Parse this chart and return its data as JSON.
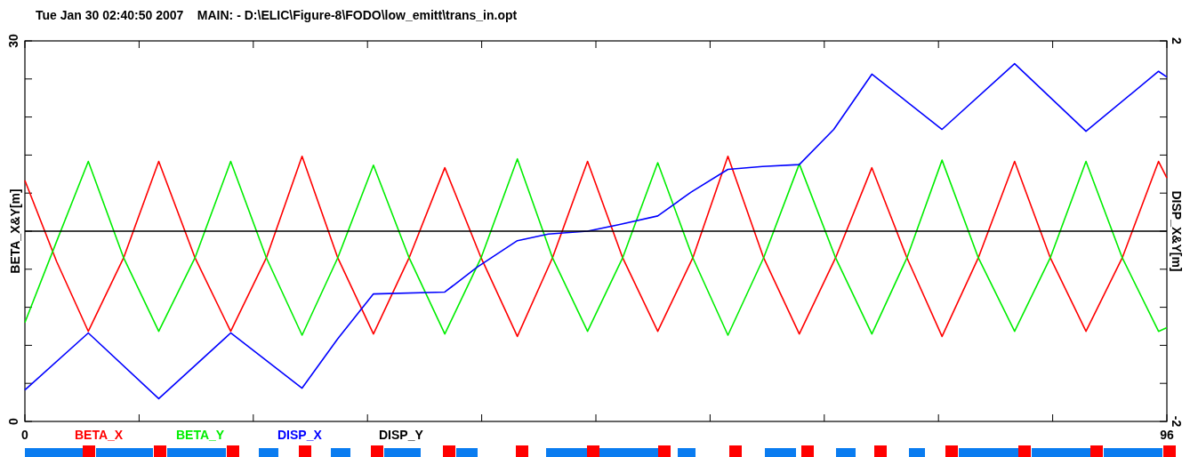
{
  "chart_data": {
    "type": "line",
    "title": "Tue Jan 30 02:40:50 2007    MAIN: - D:\\ELIC\\Figure-8\\FODO\\low_emitt\\trans_in.opt",
    "ylabel": "BETA_X&Y[m]",
    "y2label": "DISP_X&Y[m]",
    "xlim": [
      0,
      96
    ],
    "xticks": [
      0,
      {
        "value": 9.6,
        "label": null
      },
      {
        "value": 19.2,
        "label": null
      },
      {
        "value": 28.8,
        "label": null
      },
      {
        "value": 38.4,
        "label": null
      },
      {
        "value": 48,
        "label": null
      },
      {
        "value": 57.6,
        "label": null
      },
      {
        "value": 67.2,
        "label": null
      },
      {
        "value": 76.8,
        "label": null
      },
      {
        "value": 86.4,
        "label": null
      },
      96
    ],
    "ylim": [
      0,
      30
    ],
    "yticks": [
      0,
      {
        "value": 3,
        "label": null
      },
      {
        "value": 6,
        "label": null
      },
      {
        "value": 9,
        "label": null
      },
      {
        "value": 12,
        "label": null
      },
      {
        "value": 15,
        "label": null
      },
      {
        "value": 18,
        "label": null
      },
      {
        "value": 21,
        "label": null
      },
      {
        "value": 24,
        "label": null
      },
      {
        "value": 27,
        "label": null
      },
      30
    ],
    "y2lim": [
      -2,
      2
    ],
    "y2ticks": [
      -2,
      {
        "value": -1.6,
        "label": null
      },
      {
        "value": -1.2,
        "label": null
      },
      {
        "value": -0.8,
        "label": null
      },
      {
        "value": -0.4,
        "label": null
      },
      {
        "value": 0,
        "label": null
      },
      {
        "value": 0.4,
        "label": null
      },
      {
        "value": 0.8,
        "label": null
      },
      {
        "value": 1.2,
        "label": null
      },
      {
        "value": 1.6,
        "label": null
      },
      2
    ],
    "grid": false,
    "legend": "bottom",
    "marker": "none",
    "line_style": "solid",
    "series": [
      {
        "name": "BETA_X",
        "color": "#ff0000",
        "x": [
          0,
          2.67,
          5.33,
          8.3,
          11.25,
          14.3,
          17.3,
          20.3,
          23.3,
          26.3,
          29.3,
          32.3,
          35.3,
          38.35,
          41.4,
          44.35,
          47.3,
          50.25,
          53.2,
          56.15,
          59.1,
          62.1,
          65.1,
          68.15,
          71.2,
          74.15,
          77.1,
          80.15,
          83.2,
          86.2,
          89.2,
          92.25,
          95.3,
          96
        ],
        "values": [
          19.0,
          12.6,
          7.1,
          12.9,
          20.5,
          12.9,
          7.1,
          12.9,
          20.9,
          12.9,
          6.9,
          12.9,
          20.0,
          12.9,
          6.7,
          12.9,
          20.5,
          12.9,
          7.1,
          12.9,
          20.9,
          12.9,
          6.9,
          12.9,
          20.0,
          12.9,
          6.7,
          12.9,
          20.5,
          12.9,
          7.1,
          12.9,
          20.5,
          19.2
        ]
      },
      {
        "name": "BETA_Y",
        "color": "#00ee00",
        "x": [
          0,
          2.67,
          5.33,
          8.3,
          11.25,
          14.3,
          17.3,
          20.3,
          23.3,
          26.3,
          29.3,
          32.3,
          35.3,
          38.35,
          41.4,
          44.35,
          47.3,
          50.25,
          53.2,
          56.15,
          59.1,
          62.1,
          65.1,
          68.15,
          71.2,
          74.15,
          77.1,
          80.15,
          83.2,
          86.2,
          89.2,
          92.25,
          95.3,
          96
        ],
        "values": [
          7.8,
          14.2,
          20.5,
          12.9,
          7.1,
          12.9,
          20.5,
          12.9,
          6.8,
          12.9,
          20.2,
          12.9,
          6.9,
          12.9,
          20.7,
          12.9,
          7.1,
          12.9,
          20.4,
          12.9,
          6.8,
          12.9,
          20.3,
          12.9,
          6.9,
          12.9,
          20.6,
          12.9,
          7.1,
          12.9,
          20.5,
          12.9,
          7.1,
          7.4
        ]
      },
      {
        "name": "DISP_X",
        "color": "#0000ff",
        "axis": "y2",
        "x": [
          0,
          5.33,
          11.25,
          17.3,
          23.3,
          26.3,
          29.3,
          35.3,
          38,
          41.4,
          44,
          47.3,
          50,
          53.2,
          56,
          59.1,
          62,
          65.1,
          68,
          71.2,
          77.1,
          83.2,
          89.2,
          95.3,
          96
        ],
        "values": [
          -1.67,
          -1.07,
          -1.76,
          -1.07,
          -1.65,
          -1.13,
          -0.66,
          -0.64,
          -0.38,
          -0.1,
          -0.03,
          0.0,
          0.07,
          0.16,
          0.41,
          0.65,
          0.68,
          0.7,
          1.07,
          1.65,
          1.07,
          1.76,
          1.05,
          1.68,
          1.62
        ]
      },
      {
        "name": "DISP_Y",
        "color": "#000000",
        "axis": "y2",
        "x": [
          0,
          96
        ],
        "values": [
          0,
          0
        ]
      }
    ]
  }
}
